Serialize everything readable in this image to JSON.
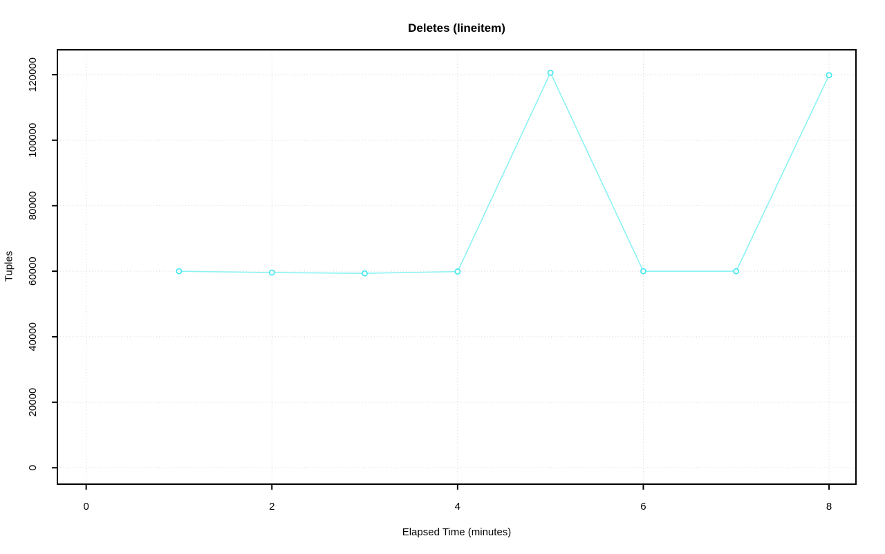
{
  "chart_data": {
    "type": "line",
    "title": "Deletes (lineitem)",
    "xlabel": "Elapsed Time (minutes)",
    "ylabel": "Tuples",
    "x": [
      1,
      2,
      3,
      4,
      5,
      6,
      7,
      8
    ],
    "series": [
      {
        "name": "deletes",
        "values": [
          60000,
          59600,
          59350,
          59900,
          120600,
          60000,
          60000,
          119850
        ]
      }
    ],
    "x_ticks": [
      0,
      2,
      4,
      6,
      8
    ],
    "y_ticks": [
      0,
      20000,
      40000,
      60000,
      80000,
      100000,
      120000
    ],
    "xlim": [
      -0.31,
      8.29
    ],
    "ylim": [
      -5000,
      127600
    ],
    "grid": true,
    "grid_style": "dotted",
    "marker": "open-circle",
    "legend": "none",
    "colors": {
      "line": "#8BF2F4",
      "marker": "#45E8EF",
      "grid": "#D3D3D3",
      "axis": "#000000",
      "background": "#FFFFFF"
    }
  }
}
